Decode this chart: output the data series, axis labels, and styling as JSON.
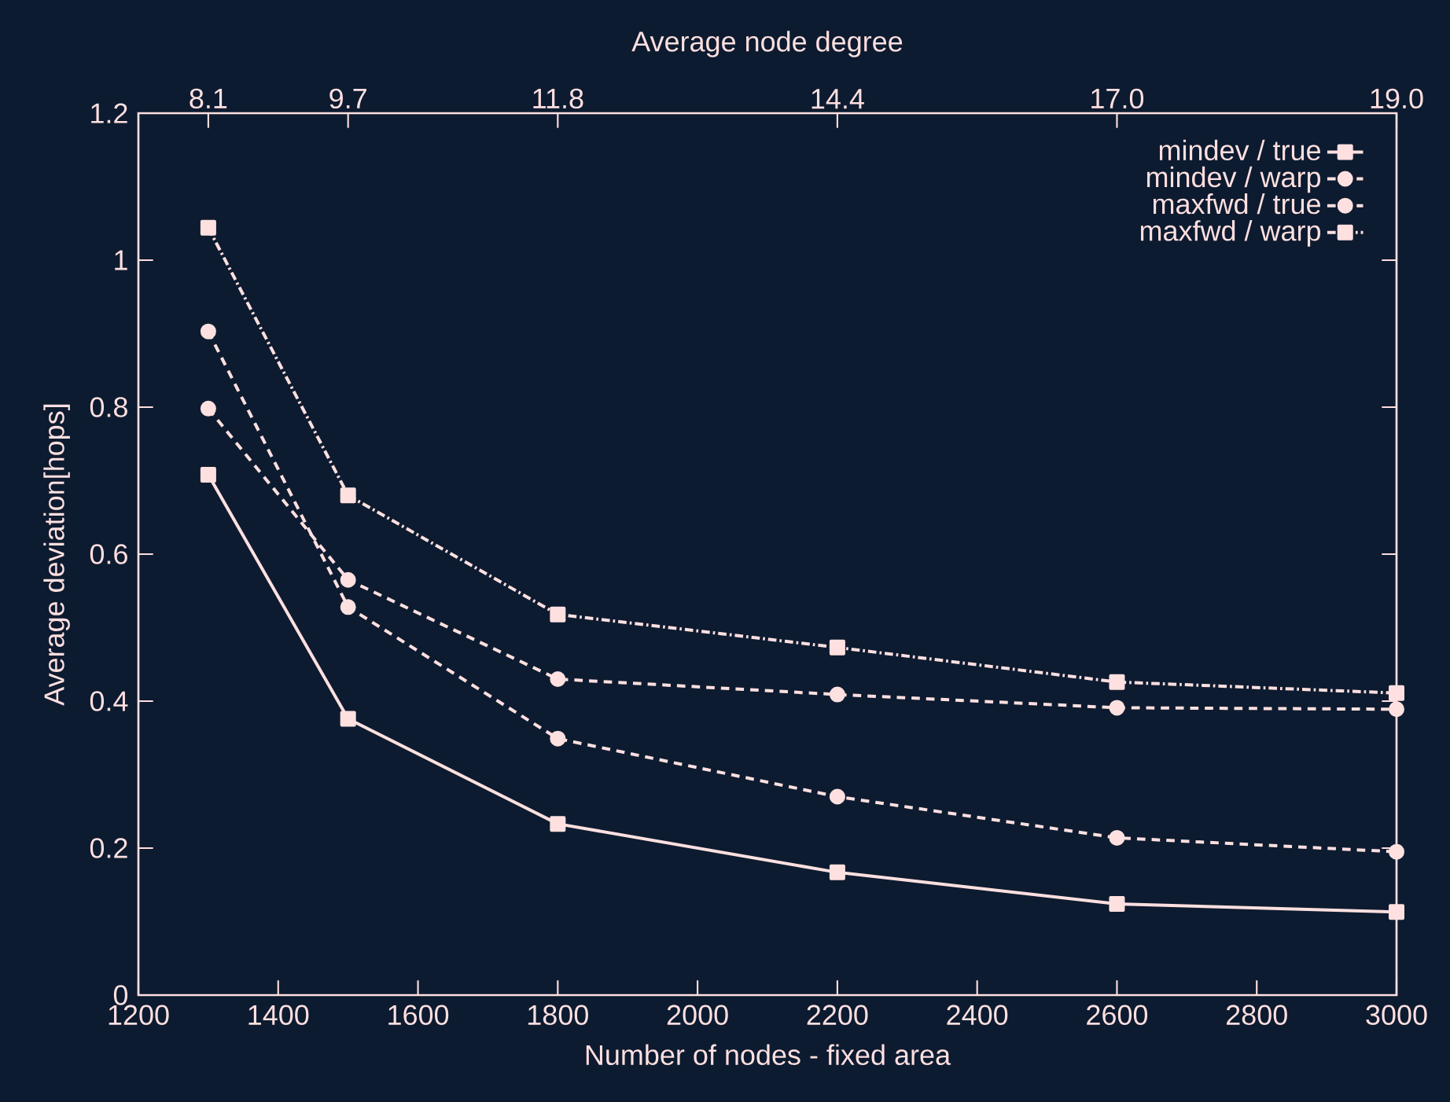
{
  "chart_data": {
    "type": "line",
    "xlabel": "Number of nodes - fixed area",
    "ylabel": "Average deviation[hops]",
    "x2label": "Average node degree",
    "x": [
      1300,
      1500,
      1800,
      2200,
      2600,
      3000
    ],
    "xlim": [
      1200,
      3000
    ],
    "xticks": [
      1200,
      1400,
      1600,
      1800,
      2000,
      2200,
      2400,
      2600,
      2800,
      3000
    ],
    "ylim": [
      0,
      1.2
    ],
    "yticks": [
      0,
      0.2,
      0.4,
      0.6,
      0.8,
      1,
      1.2
    ],
    "annotations": [
      {
        "text": "8.1",
        "x": 1300
      },
      {
        "text": "9.7",
        "x": 1500
      },
      {
        "text": "11.8",
        "x": 1800
      },
      {
        "text": "14.4",
        "x": 2200
      },
      {
        "text": "17.0",
        "x": 2600
      },
      {
        "text": "19.0",
        "x": 3000
      }
    ],
    "legend": "top right",
    "grid": false,
    "series": [
      {
        "name": "mindev / true",
        "color": "#ffe0e0",
        "marker": "square",
        "line_style": "solid",
        "values": [
          0.708,
          0.376,
          0.233,
          0.167,
          0.124,
          0.113
        ]
      },
      {
        "name": "mindev / warp",
        "color": "#ffe0e0",
        "marker": "circle",
        "line_style": "dashed",
        "values": [
          0.903,
          0.528,
          0.349,
          0.27,
          0.214,
          0.195
        ]
      },
      {
        "name": "maxfwd / true",
        "color": "#ffe0e0",
        "marker": "circle",
        "line_style": "dashed",
        "values": [
          0.798,
          0.565,
          0.43,
          0.409,
          0.391,
          0.389
        ]
      },
      {
        "name": "maxfwd / warp",
        "color": "#ffe0e0",
        "marker": "square",
        "line_style": "dotted",
        "values": [
          1.044,
          0.68,
          0.518,
          0.473,
          0.426,
          0.411
        ]
      }
    ]
  }
}
